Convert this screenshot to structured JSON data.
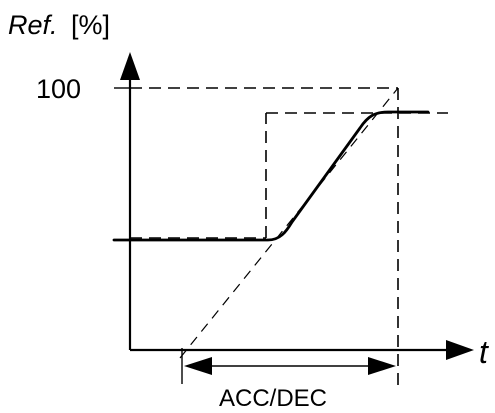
{
  "diagram": {
    "y_axis_label_italic": "Ref.",
    "y_axis_label_unit": "[%]",
    "y_tick_label": "100",
    "x_axis_label": "t",
    "span_label": "ACC/DEC"
  }
}
